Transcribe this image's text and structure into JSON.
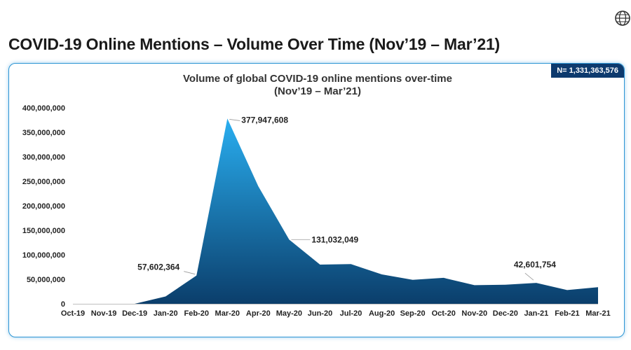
{
  "page": {
    "title": "COVID-19 Online Mentions – Volume Over Time (Nov’19 – Mar’21)",
    "badge": "N= 1,331,363,576"
  },
  "chart_data": {
    "type": "area",
    "title": "Volume of global COVID-19 online mentions over-time",
    "subtitle": "(Nov’19 – Mar’21)",
    "categories": [
      "Oct-19",
      "Nov-19",
      "Dec-19",
      "Jan-20",
      "Feb-20",
      "Mar-20",
      "Apr-20",
      "May-20",
      "Jun-20",
      "Jul-20",
      "Aug-20",
      "Sep-20",
      "Oct-20",
      "Nov-20",
      "Dec-20",
      "Jan-21",
      "Feb-21",
      "Mar-21"
    ],
    "values": [
      0,
      0,
      0,
      15000000,
      57602364,
      377947608,
      240000000,
      131032049,
      80000000,
      81000000,
      60000000,
      49000000,
      53000000,
      38000000,
      39000000,
      42601754,
      28000000,
      34000000
    ],
    "ylim": [
      0,
      400000000
    ],
    "yticks": [
      0,
      50000000,
      100000000,
      150000000,
      200000000,
      250000000,
      300000000,
      350000000,
      400000000
    ],
    "ytick_labels": [
      "0",
      "50,000,000",
      "100,000,000",
      "150,000,000",
      "200,000,000",
      "250,000,000",
      "300,000,000",
      "350,000,000",
      "400,000,000"
    ],
    "grid": false,
    "colors": {
      "top": "#29aef0",
      "bottom": "#0b3e6b"
    },
    "annotations": [
      {
        "index": 4,
        "text": "57,602,364"
      },
      {
        "index": 5,
        "text": "377,947,608"
      },
      {
        "index": 7,
        "text": "131,032,049"
      },
      {
        "index": 15,
        "text": "42,601,754"
      }
    ]
  }
}
